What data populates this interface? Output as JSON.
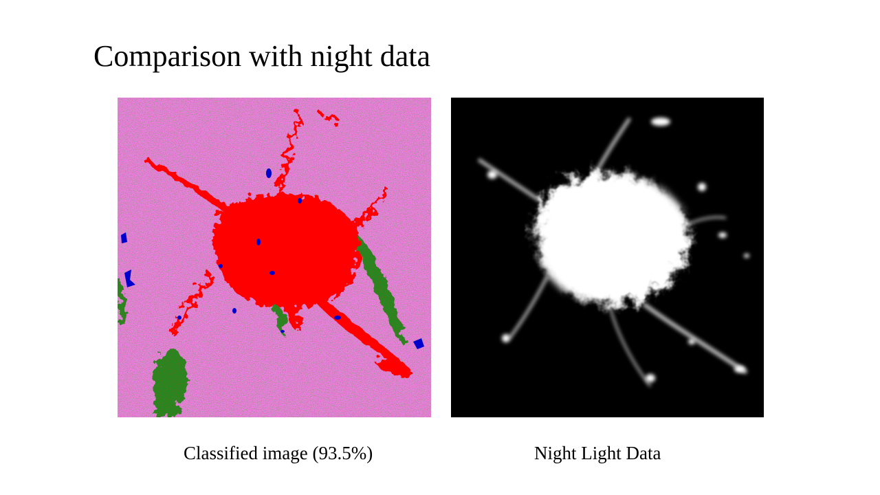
{
  "slide": {
    "title": "Comparison with night data"
  },
  "figures": [
    {
      "caption": "Classified image (93.5%)",
      "colors": {
        "background": "#ee82ee",
        "urban": "#ff0000",
        "vegetation": "#228b22",
        "water": "#0000cd"
      }
    },
    {
      "caption": "Night Light Data",
      "colors": {
        "background": "#000000",
        "light": "#ffffff"
      }
    }
  ]
}
